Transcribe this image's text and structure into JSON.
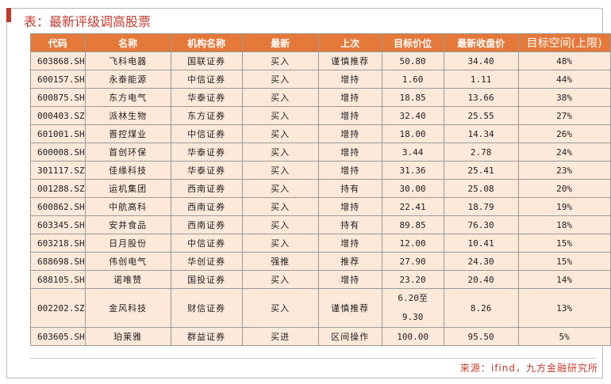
{
  "title": "表：最新评级调高股票",
  "headers": [
    "代码",
    "名称",
    "机构名称",
    "最新",
    "上次",
    "目标价位",
    "最新收盘价",
    "目标空间(上限)"
  ],
  "rows": [
    {
      "code": "603868.SH",
      "name": "飞科电器",
      "org": "国联证券",
      "latest": "买入",
      "previous": "谨慎推荐",
      "target": "50.80",
      "close": "34.40",
      "space": "48%"
    },
    {
      "code": "600157.SH",
      "name": "永泰能源",
      "org": "中信证券",
      "latest": "买入",
      "previous": "增持",
      "target": "1.60",
      "close": "1.11",
      "space": "44%"
    },
    {
      "code": "600875.SH",
      "name": "东方电气",
      "org": "华泰证券",
      "latest": "买入",
      "previous": "增持",
      "target": "18.85",
      "close": "13.66",
      "space": "38%"
    },
    {
      "code": "000403.SZ",
      "name": "派林生物",
      "org": "东方证券",
      "latest": "买入",
      "previous": "增持",
      "target": "32.40",
      "close": "25.55",
      "space": "27%"
    },
    {
      "code": "601001.SH",
      "name": "晋控煤业",
      "org": "中信证券",
      "latest": "买入",
      "previous": "增持",
      "target": "18.00",
      "close": "14.34",
      "space": "26%"
    },
    {
      "code": "600008.SH",
      "name": "首创环保",
      "org": "华泰证券",
      "latest": "买入",
      "previous": "增持",
      "target": "3.44",
      "close": "2.78",
      "space": "24%"
    },
    {
      "code": "301117.SZ",
      "name": "佳缘科技",
      "org": "华泰证券",
      "latest": "买入",
      "previous": "增持",
      "target": "31.36",
      "close": "25.41",
      "space": "23%"
    },
    {
      "code": "001288.SZ",
      "name": "运机集团",
      "org": "西南证券",
      "latest": "买入",
      "previous": "持有",
      "target": "30.00",
      "close": "25.08",
      "space": "20%"
    },
    {
      "code": "600862.SH",
      "name": "中航高科",
      "org": "西南证券",
      "latest": "买入",
      "previous": "增持",
      "target": "22.41",
      "close": "18.79",
      "space": "19%"
    },
    {
      "code": "603345.SH",
      "name": "安井食品",
      "org": "西南证券",
      "latest": "买入",
      "previous": "持有",
      "target": "89.85",
      "close": "76.30",
      "space": "18%"
    },
    {
      "code": "603218.SH",
      "name": "日月股份",
      "org": "中信证券",
      "latest": "买入",
      "previous": "增持",
      "target": "12.00",
      "close": "10.41",
      "space": "15%"
    },
    {
      "code": "688698.SH",
      "name": "伟创电气",
      "org": "华创证券",
      "latest": "强推",
      "previous": "推荐",
      "target": "27.90",
      "close": "24.30",
      "space": "15%"
    },
    {
      "code": "688105.SH",
      "name": "诺唯赞",
      "org": "国投证券",
      "latest": "买入",
      "previous": "增持",
      "target": "23.20",
      "close": "20.40",
      "space": "14%"
    },
    {
      "code": "002202.SZ",
      "name": "金风科技",
      "org": "财信证券",
      "latest": "买入",
      "previous": "谨慎推荐",
      "target_line1": "6.20至",
      "target_line2": "9.30",
      "close": "8.26",
      "space": "13%"
    },
    {
      "code": "603605.SH",
      "name": "珀莱雅",
      "org": "群益证券",
      "latest": "买进",
      "previous": "区间操作",
      "target": "100.00",
      "close": "95.50",
      "space": "5%"
    }
  ],
  "source": "来源：ifind，九方金融研究所",
  "colors": {
    "header_bg": "#e5793a",
    "cell_bg": "#fce9da",
    "title": "#c23a2e",
    "border": "#9a9a9a"
  }
}
